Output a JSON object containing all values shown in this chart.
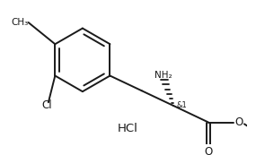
{
  "bg_color": "#ffffff",
  "line_color": "#1a1a1a",
  "line_width": 1.4,
  "font_size": 7.5,
  "hcl_text": "HCl",
  "stereo_label": "&1",
  "nh2_label": "NH₂",
  "cl_label": "Cl",
  "ch3_label": "CH₃",
  "o_label": "O",
  "o_ester_label": "O"
}
